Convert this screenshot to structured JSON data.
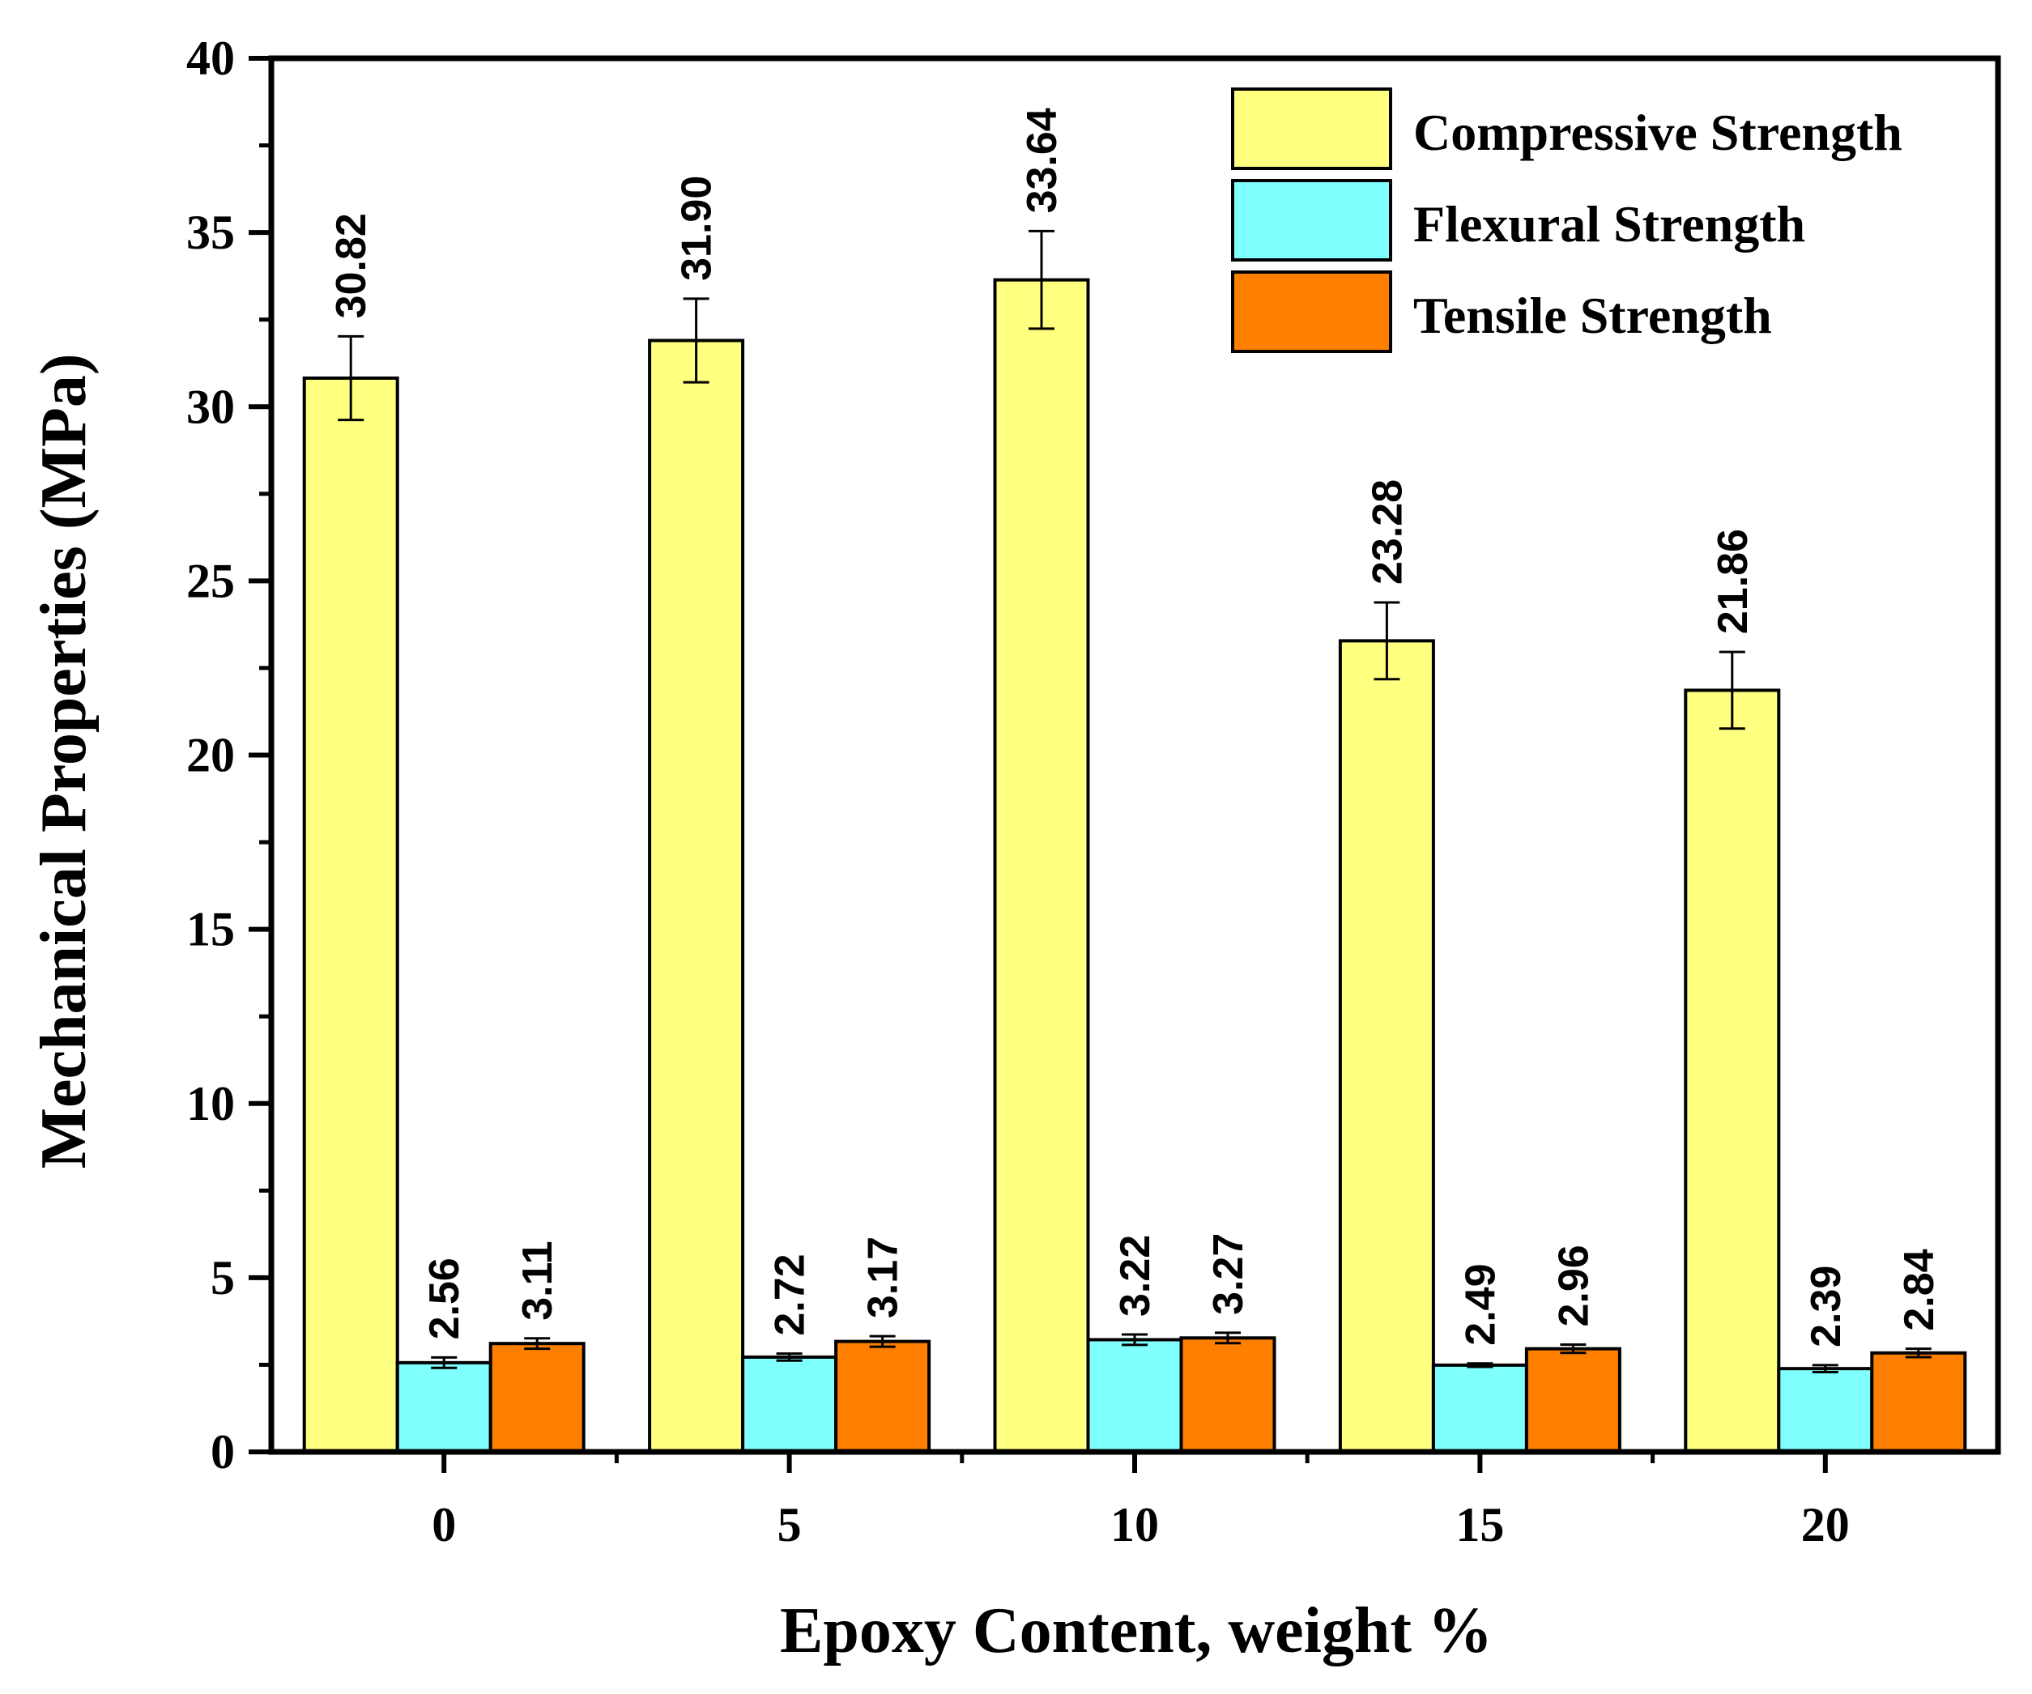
{
  "chart_data": {
    "type": "bar",
    "title": "",
    "xlabel": "Epoxy Content, weight %",
    "ylabel": "Mechanical Properties (MPa)",
    "ylim": [
      0,
      40
    ],
    "yticks": [
      "0",
      "5",
      "10",
      "15",
      "20",
      "25",
      "30",
      "35",
      "40"
    ],
    "categories": [
      "0",
      "5",
      "10",
      "15",
      "20"
    ],
    "legend_position": "top-right",
    "grid": false,
    "series": [
      {
        "name": "Compressive Strength",
        "color": "#FFFF80",
        "values": [
          30.82,
          31.9,
          33.64,
          23.28,
          21.86
        ],
        "labels": [
          "30.82",
          "31.90",
          "33.64",
          "23.28",
          "21.86"
        ],
        "errors": [
          1.2,
          1.2,
          1.4,
          1.1,
          1.1
        ]
      },
      {
        "name": "Flexural Strength",
        "color": "#80FFFF",
        "values": [
          2.56,
          2.72,
          3.22,
          2.49,
          2.39
        ],
        "labels": [
          "2.56",
          "2.72",
          "3.22",
          "2.49",
          "2.39"
        ],
        "errors": [
          0.15,
          0.1,
          0.15,
          0.05,
          0.1
        ]
      },
      {
        "name": "Tensile Strength",
        "color": "#FF8000",
        "values": [
          3.11,
          3.17,
          3.27,
          2.96,
          2.84
        ],
        "labels": [
          "3.11",
          "3.17",
          "3.27",
          "2.96",
          "2.84"
        ],
        "errors": [
          0.15,
          0.15,
          0.15,
          0.12,
          0.12
        ]
      }
    ]
  }
}
